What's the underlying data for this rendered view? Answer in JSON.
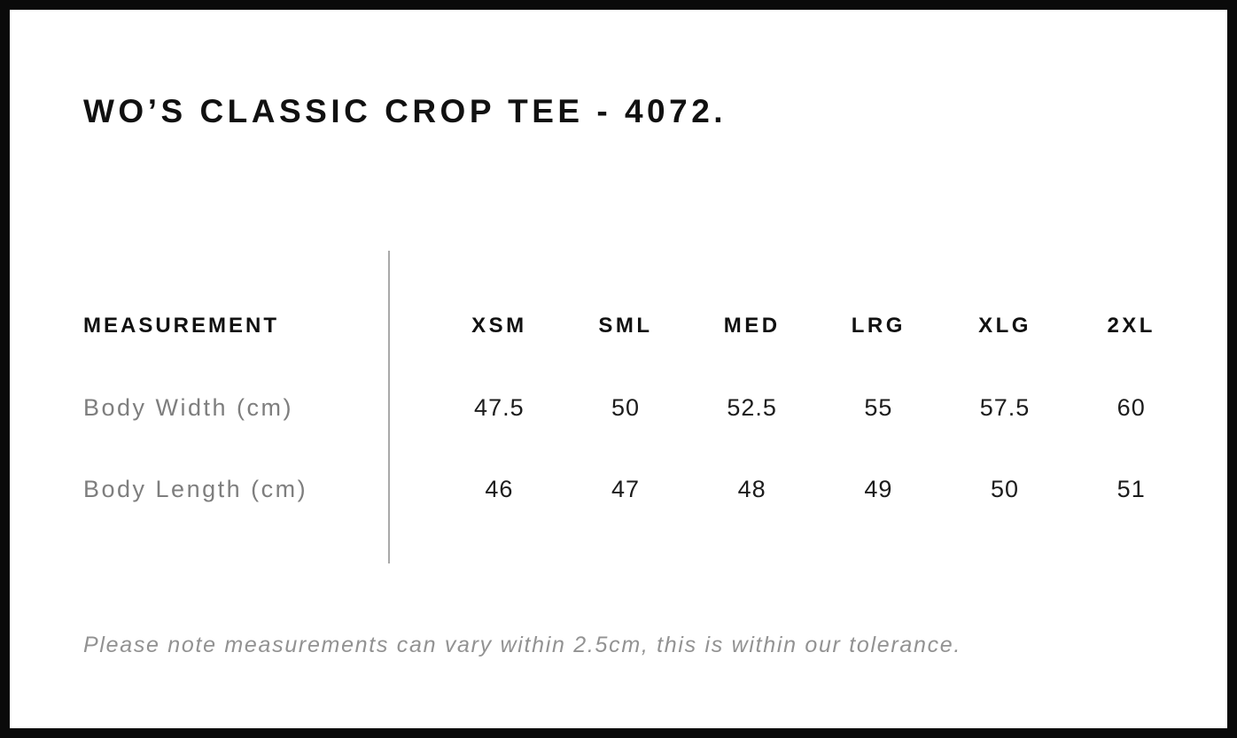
{
  "title": "WO’S CLASSIC CROP TEE - 4072.",
  "table": {
    "measurement_header": "MEASUREMENT",
    "columns": [
      "XSM",
      "SML",
      "MED",
      "LRG",
      "XLG",
      "2XL"
    ],
    "rows": [
      {
        "label": "Body Width (cm)",
        "values": [
          "47.5",
          "50",
          "52.5",
          "55",
          "57.5",
          "60"
        ]
      },
      {
        "label": "Body Length (cm)",
        "values": [
          "46",
          "47",
          "48",
          "49",
          "50",
          "51"
        ]
      }
    ]
  },
  "footer_note": "Please note measurements can vary within 2.5cm, this is within our tolerance.",
  "colors": {
    "frame": "#0a0a0a",
    "heading_text": "#111111",
    "header_text": "#111111",
    "label_text": "#7e7e7e",
    "value_text": "#1c1c1c",
    "note_text": "#929292",
    "divider": "#a9a9a9",
    "page_bg": "#ffffff"
  }
}
